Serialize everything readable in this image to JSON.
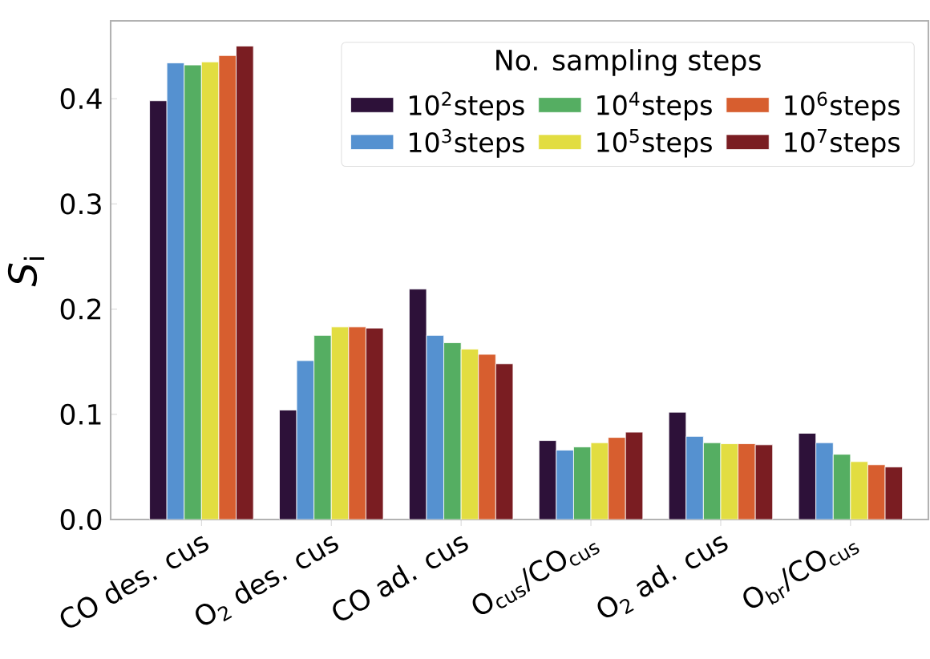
{
  "chart_data": {
    "type": "bar",
    "ylabel": "*S*$_{i}$",
    "legend_title": "No. sampling steps",
    "categories": [
      "CO des. cus",
      "O$_{2}$ des. cus",
      "CO ad. cus",
      "O$_{cus}$/CO$_{cus}$",
      "O$_{2}$ ad. cus",
      "O$_{br}$/CO$_{cus}$"
    ],
    "series": [
      {
        "name": "10$^{2}$steps",
        "color": "#2d1139",
        "values": [
          0.398,
          0.104,
          0.219,
          0.075,
          0.102,
          0.082
        ]
      },
      {
        "name": "10$^{3}$steps",
        "color": "#5591d0",
        "values": [
          0.434,
          0.151,
          0.175,
          0.066,
          0.079,
          0.073
        ]
      },
      {
        "name": "10$^{4}$steps",
        "color": "#55ae62",
        "values": [
          0.432,
          0.175,
          0.168,
          0.069,
          0.073,
          0.062
        ]
      },
      {
        "name": "10$^{5}$steps",
        "color": "#e2dd41",
        "values": [
          0.435,
          0.183,
          0.162,
          0.073,
          0.072,
          0.055
        ]
      },
      {
        "name": "10$^{6}$steps",
        "color": "#d75e2f",
        "values": [
          0.441,
          0.183,
          0.157,
          0.078,
          0.072,
          0.052
        ]
      },
      {
        "name": "10$^{7}$steps",
        "color": "#7a1d22",
        "values": [
          0.45,
          0.182,
          0.148,
          0.083,
          0.071,
          0.05
        ]
      }
    ],
    "ylim": [
      0,
      0.474
    ],
    "yticks": [
      {
        "value": 0,
        "label": "0.0"
      },
      0.1,
      0.2,
      0.3,
      0.4
    ],
    "grid": false,
    "legend": "top right"
  }
}
